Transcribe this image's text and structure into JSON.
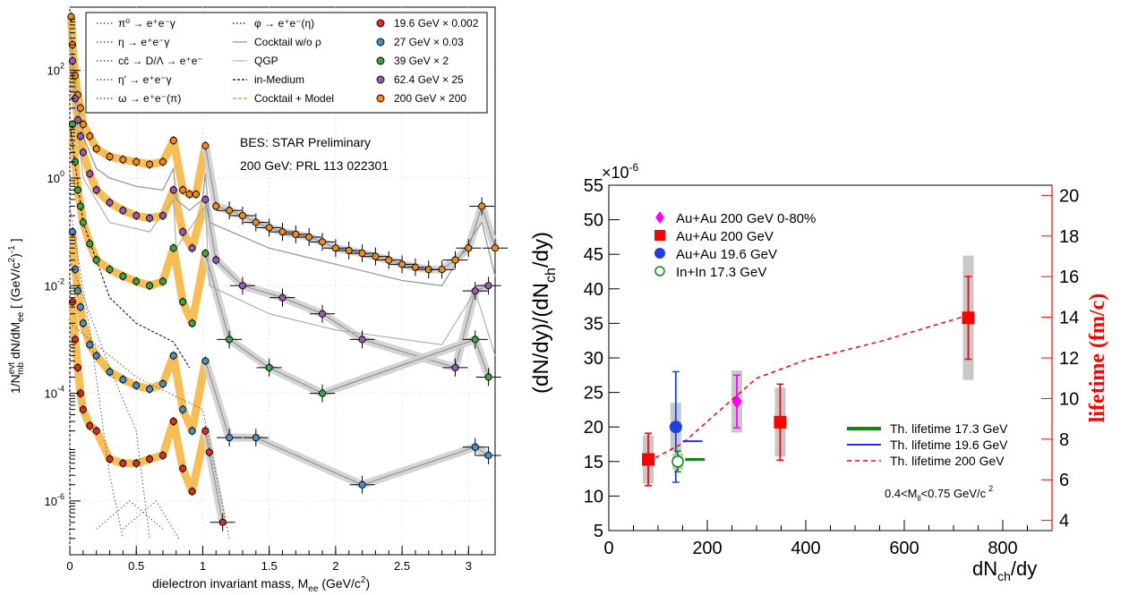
{
  "chart_data": [
    {
      "type": "scatter",
      "xlabel": "dielectron invariant mass, M",
      "xlabel_sub": "ee",
      "xlabel_unit": "(GeV/c",
      "xlabel_unit_end": ")",
      "ylabel": "1/N",
      "ylabel_rest": "dN/dM",
      "ylabel_unit": "[ (GeV/c",
      "ylabel_unit_end": ") ]",
      "xlim": [
        0,
        3.2
      ],
      "ylog": true,
      "ylim": [
        1e-07,
        1500
      ],
      "x_ticks": [
        {
          "v": 0,
          "label": "0"
        },
        {
          "v": 0.5,
          "label": "0.5"
        },
        {
          "v": 1,
          "label": "1"
        },
        {
          "v": 1.5,
          "label": "1.5"
        },
        {
          "v": 2,
          "label": "2"
        },
        {
          "v": 2.5,
          "label": "2.5"
        },
        {
          "v": 3,
          "label": "3"
        }
      ],
      "y_ticks": [
        {
          "v": 1e-06,
          "base": "10",
          "exp": "-6"
        },
        {
          "v": 0.0001,
          "base": "10",
          "exp": "-4"
        },
        {
          "v": 0.01,
          "base": "10",
          "exp": "-2"
        },
        {
          "v": 1,
          "base": "10",
          "exp": "0"
        },
        {
          "v": 100,
          "base": "10",
          "exp": "2"
        }
      ],
      "annotations": [
        "BES: STAR Preliminary",
        "200 GeV: PRL 113 022301"
      ],
      "legend_col1": [
        "π⁰ → e⁺e⁻γ",
        "η → e⁺e⁻γ",
        "cc̄ → D/Λ → e⁺e⁻",
        "η' → e⁺e⁻γ",
        "ω → e⁺e⁻(π)"
      ],
      "legend_col2": [
        "φ → e⁺e⁻(η)",
        "Cocktail w/o ρ",
        "QGP",
        "in-Medium",
        "Cocktail + Model"
      ],
      "legend_col3": [
        "19.6 GeV × 0.002",
        "27 GeV × 0.03",
        "39 GeV × 2",
        "62.4 GeV × 25",
        "200 GeV × 200"
      ],
      "series_colors": [
        "#d73027",
        "#4a90c8",
        "#3aa547",
        "#9b59b6",
        "#f08a1c"
      ],
      "band_color": "#f6b33b",
      "series": [
        {
          "name": "200 GeV × 200",
          "points": [
            [
              0.01,
              1000
            ],
            [
              0.02,
              300
            ],
            [
              0.04,
              80
            ],
            [
              0.06,
              35
            ],
            [
              0.08,
              20
            ],
            [
              0.1,
              10
            ],
            [
              0.15,
              6
            ],
            [
              0.2,
              3.5
            ],
            [
              0.3,
              2.5
            ],
            [
              0.4,
              2.2
            ],
            [
              0.5,
              2
            ],
            [
              0.6,
              1.8
            ],
            [
              0.7,
              2.0
            ],
            [
              0.78,
              5
            ],
            [
              0.85,
              0.6
            ],
            [
              0.9,
              0.5
            ],
            [
              0.95,
              0.5
            ],
            [
              1.02,
              4
            ],
            [
              1.1,
              0.3
            ],
            [
              1.2,
              0.25
            ],
            [
              1.3,
              0.2
            ],
            [
              1.4,
              0.15
            ],
            [
              1.5,
              0.12
            ],
            [
              1.6,
              0.1
            ],
            [
              1.7,
              0.09
            ],
            [
              1.8,
              0.08
            ],
            [
              1.9,
              0.065
            ],
            [
              2.0,
              0.05
            ],
            [
              2.1,
              0.045
            ],
            [
              2.2,
              0.04
            ],
            [
              2.3,
              0.035
            ],
            [
              2.4,
              0.03
            ],
            [
              2.5,
              0.025
            ],
            [
              2.6,
              0.022
            ],
            [
              2.7,
              0.02
            ],
            [
              2.8,
              0.02
            ],
            [
              2.9,
              0.03
            ],
            [
              3.0,
              0.05
            ],
            [
              3.1,
              0.3
            ],
            [
              3.2,
              0.05
            ]
          ]
        },
        {
          "name": "62.4 GeV × 25",
          "points": [
            [
              0.02,
              150
            ],
            [
              0.04,
              30
            ],
            [
              0.06,
              12
            ],
            [
              0.08,
              6
            ],
            [
              0.1,
              3
            ],
            [
              0.15,
              1.2
            ],
            [
              0.2,
              0.6
            ],
            [
              0.3,
              0.35
            ],
            [
              0.4,
              0.25
            ],
            [
              0.5,
              0.2
            ],
            [
              0.6,
              0.18
            ],
            [
              0.7,
              0.2
            ],
            [
              0.78,
              0.6
            ],
            [
              0.85,
              0.1
            ],
            [
              0.92,
              0.05
            ],
            [
              1.02,
              0.4
            ],
            [
              1.1,
              0.03
            ],
            [
              1.3,
              0.01
            ],
            [
              1.6,
              0.006
            ],
            [
              1.9,
              0.003
            ],
            [
              2.2,
              0.001
            ],
            [
              2.9,
              0.0003
            ],
            [
              3.05,
              0.008
            ],
            [
              3.15,
              0.01
            ]
          ]
        },
        {
          "name": "39 GeV × 2",
          "points": [
            [
              0.02,
              10
            ],
            [
              0.04,
              2
            ],
            [
              0.06,
              0.6
            ],
            [
              0.08,
              0.3
            ],
            [
              0.1,
              0.15
            ],
            [
              0.15,
              0.06
            ],
            [
              0.2,
              0.03
            ],
            [
              0.3,
              0.02
            ],
            [
              0.4,
              0.015
            ],
            [
              0.5,
              0.012
            ],
            [
              0.6,
              0.01
            ],
            [
              0.7,
              0.012
            ],
            [
              0.78,
              0.05
            ],
            [
              0.85,
              0.005
            ],
            [
              0.92,
              0.002
            ],
            [
              1.02,
              0.04
            ],
            [
              1.2,
              0.001
            ],
            [
              1.5,
              0.0003
            ],
            [
              1.9,
              0.0001
            ],
            [
              3.05,
              0.001
            ],
            [
              3.15,
              0.0002
            ]
          ]
        },
        {
          "name": "27 GeV × 0.03",
          "points": [
            [
              0.02,
              0.1
            ],
            [
              0.04,
              0.02
            ],
            [
              0.06,
              0.008
            ],
            [
              0.08,
              0.004
            ],
            [
              0.1,
              0.002
            ],
            [
              0.15,
              0.0008
            ],
            [
              0.2,
              0.0005
            ],
            [
              0.3,
              0.00025
            ],
            [
              0.4,
              0.00018
            ],
            [
              0.5,
              0.00014
            ],
            [
              0.6,
              0.00012
            ],
            [
              0.7,
              0.00015
            ],
            [
              0.78,
              0.0005
            ],
            [
              0.85,
              5e-05
            ],
            [
              0.92,
              2e-05
            ],
            [
              1.02,
              0.0004
            ],
            [
              1.2,
              1.5e-05
            ],
            [
              1.4,
              1.5e-05
            ],
            [
              2.2,
              2e-06
            ],
            [
              3.05,
              1e-05
            ],
            [
              3.15,
              7e-06
            ]
          ]
        },
        {
          "name": "19.6 GeV × 0.002",
          "points": [
            [
              0.02,
              0.005
            ],
            [
              0.04,
              0.001
            ],
            [
              0.06,
              0.0003
            ],
            [
              0.08,
              0.0001
            ],
            [
              0.1,
              5e-05
            ],
            [
              0.15,
              2.5e-05
            ],
            [
              0.2,
              2e-05
            ],
            [
              0.3,
              6e-06
            ],
            [
              0.4,
              5e-06
            ],
            [
              0.5,
              5e-06
            ],
            [
              0.6,
              6e-06
            ],
            [
              0.7,
              7e-06
            ],
            [
              0.78,
              3e-05
            ],
            [
              0.85,
              4e-06
            ],
            [
              0.92,
              1.5e-06
            ],
            [
              1.02,
              2e-05
            ],
            [
              1.05,
              8e-06
            ],
            [
              1.15,
              4e-07
            ]
          ]
        }
      ],
      "curves": {
        "cocktail_200": [
          [
            0.0,
            1200
          ],
          [
            0.05,
            60
          ],
          [
            0.1,
            12
          ],
          [
            0.2,
            3
          ],
          [
            0.3,
            2
          ],
          [
            0.5,
            1.4
          ],
          [
            0.7,
            1.2
          ],
          [
            0.78,
            3
          ],
          [
            0.8,
            0.8
          ],
          [
            0.9,
            0.5
          ],
          [
            1.0,
            0.8
          ],
          [
            1.02,
            2.5
          ],
          [
            1.05,
            0.3
          ],
          [
            1.5,
            0.1
          ],
          [
            2.0,
            0.05
          ],
          [
            2.5,
            0.025
          ],
          [
            2.8,
            0.02
          ],
          [
            3.05,
            0.2
          ],
          [
            3.1,
            0.3
          ],
          [
            3.2,
            0.03
          ]
        ],
        "cocktail_low": [
          [
            0.0,
            200
          ],
          [
            0.1,
            1
          ],
          [
            0.3,
            0.15
          ],
          [
            0.6,
            0.1
          ],
          [
            0.78,
            0.4
          ],
          [
            0.8,
            0.05
          ],
          [
            1.02,
            0.3
          ],
          [
            1.05,
            0.01
          ],
          [
            1.5,
            0.003
          ],
          [
            2.0,
            0.0015
          ],
          [
            2.8,
            0.0008
          ],
          [
            3.05,
            0.008
          ],
          [
            3.2,
            0.0005
          ]
        ]
      }
    },
    {
      "type": "scatter",
      "xlabel": "dN",
      "xlabel_sub": "ch",
      "xlabel_end": "/dy",
      "ylabel": "(dN/dy)/(dN",
      "ylabel_sub": "ch",
      "ylabel_end": "/dy)",
      "ylabel_scale": "×10",
      "ylabel_scale_exp": "-6",
      "y2label": "lifetime (fm/c)",
      "xlim": [
        0,
        900
      ],
      "ylim": [
        5,
        55
      ],
      "y2lim": [
        3.5,
        20.5
      ],
      "x_ticks": [
        "0",
        "200",
        "400",
        "600",
        "800"
      ],
      "x_tick_values": [
        0,
        200,
        400,
        600,
        800
      ],
      "y_ticks": [
        "5",
        "10",
        "15",
        "20",
        "25",
        "30",
        "35",
        "40",
        "45",
        "50",
        "55"
      ],
      "y_tick_values": [
        5,
        10,
        15,
        20,
        25,
        30,
        35,
        40,
        45,
        50,
        55
      ],
      "y2_ticks": [
        "4",
        "6",
        "8",
        "10",
        "12",
        "14",
        "16",
        "18",
        "20"
      ],
      "y2_tick_values": [
        4,
        6,
        8,
        10,
        12,
        14,
        16,
        18,
        20
      ],
      "legend": [
        {
          "label": "Au+Au 200 GeV 0-80%",
          "color": "#ff00ff",
          "marker": "diamond"
        },
        {
          "label": "Au+Au 200 GeV",
          "color": "#ff0000",
          "marker": "square"
        },
        {
          "label": "Au+Au 19.6 GeV",
          "color": "#1f3fe0",
          "marker": "circle"
        },
        {
          "label": "In+In 17.3 GeV",
          "color": "#118811",
          "marker": "open-circle"
        }
      ],
      "legend2": [
        {
          "label": "Th. lifetime 17.3 GeV",
          "color": "#118811"
        },
        {
          "label": "Th. lifetime 19.6 GeV",
          "color": "#2b2be0"
        },
        {
          "label": "Th. lifetime 200 GeV",
          "color": "#ff0000"
        }
      ],
      "annotation": "0.4<M",
      "annotation_sub": "ll",
      "annotation_end": "<0.75 GeV/c",
      "annotation_exp": "2",
      "points": [
        {
          "series": "Au+Au 200 GeV",
          "x": 80,
          "y": 15.3,
          "stat": 3.8,
          "sys": 3.5
        },
        {
          "series": "Au+Au 200 GeV",
          "x": 348,
          "y": 20.7,
          "stat": 5.5,
          "sys": 5
        },
        {
          "series": "Au+Au 200 GeV",
          "x": 730,
          "y": 35.8,
          "stat": 6,
          "sys": 9
        },
        {
          "series": "Au+Au 200 GeV 0-80%",
          "x": 260,
          "y": 23.7,
          "stat": 3.8,
          "sys": 4.5
        },
        {
          "series": "Au+Au 19.6 GeV",
          "x": 136,
          "y": 20,
          "stat": 8,
          "sys": 3.5
        },
        {
          "series": "In+In 17.3 GeV",
          "x": 140,
          "y": 15,
          "stat": 1.5,
          "sys": 1.2
        }
      ],
      "theory_200": [
        [
          80,
          6.9
        ],
        [
          150,
          7.8
        ],
        [
          220,
          9.3
        ],
        [
          300,
          11
        ],
        [
          400,
          11.9
        ],
        [
          550,
          12.8
        ],
        [
          730,
          14.1
        ]
      ],
      "theory_196": [
        [
          150,
          7.9
        ],
        [
          190,
          7.9
        ]
      ],
      "theory_173": [
        [
          155,
          7.0
        ],
        [
          195,
          7.0
        ]
      ]
    }
  ]
}
